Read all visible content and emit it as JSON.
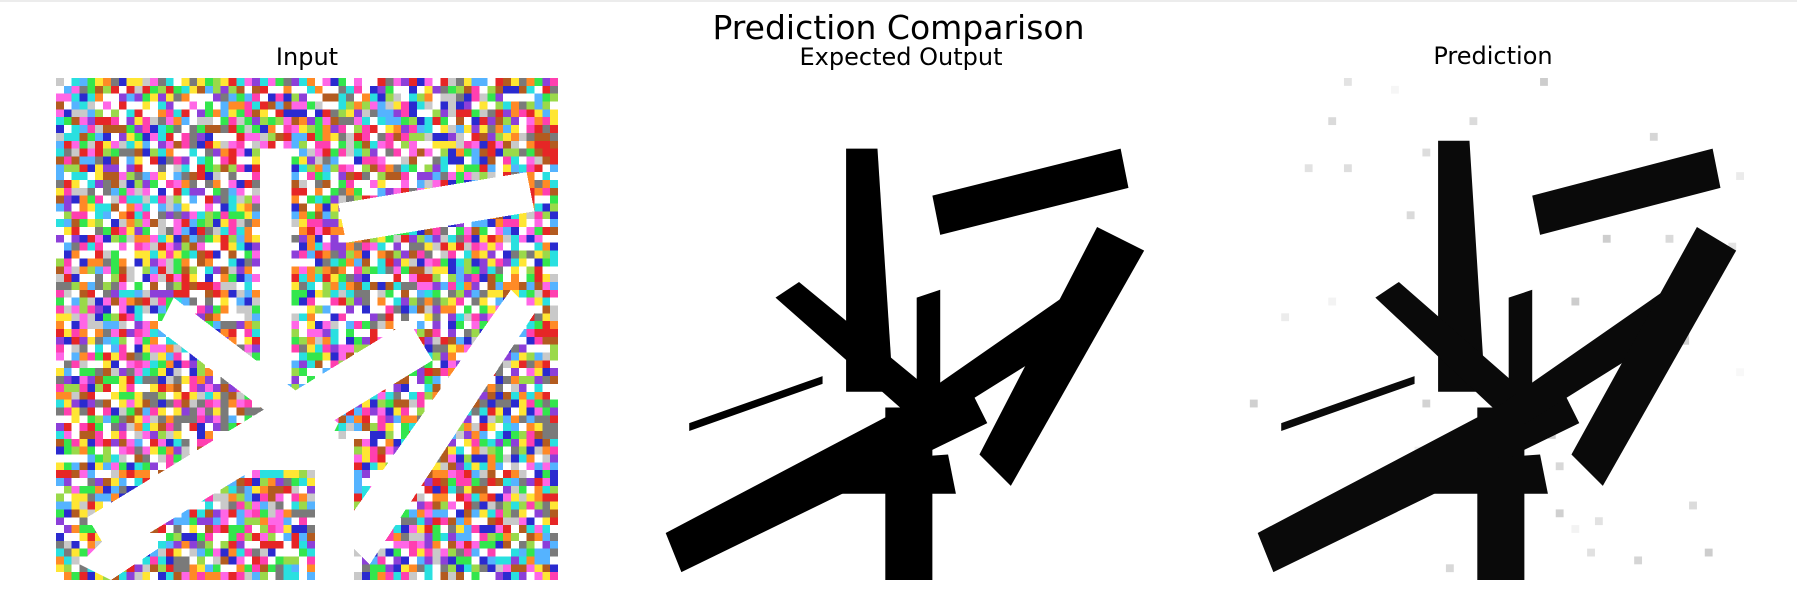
{
  "figure": {
    "title": "Prediction Comparison",
    "panels": [
      {
        "title": "Input",
        "content": "noisy-color-input"
      },
      {
        "title": "Expected Output",
        "content": "binary-target"
      },
      {
        "title": "Prediction",
        "content": "grayscale-prediction"
      }
    ]
  },
  "colors": {
    "background": "#ffffff",
    "ink": "#000000",
    "noise_palette": [
      "#ff3fb0",
      "#33e64d",
      "#2a2acf",
      "#ffe633",
      "#8c3fd9",
      "#29e0e0",
      "#ff8a26",
      "#e62626",
      "#9ad94a",
      "#c9c9c9",
      "#ff66e6",
      "#55b3ff",
      "#b35b1f",
      "#7a7a7a"
    ]
  }
}
